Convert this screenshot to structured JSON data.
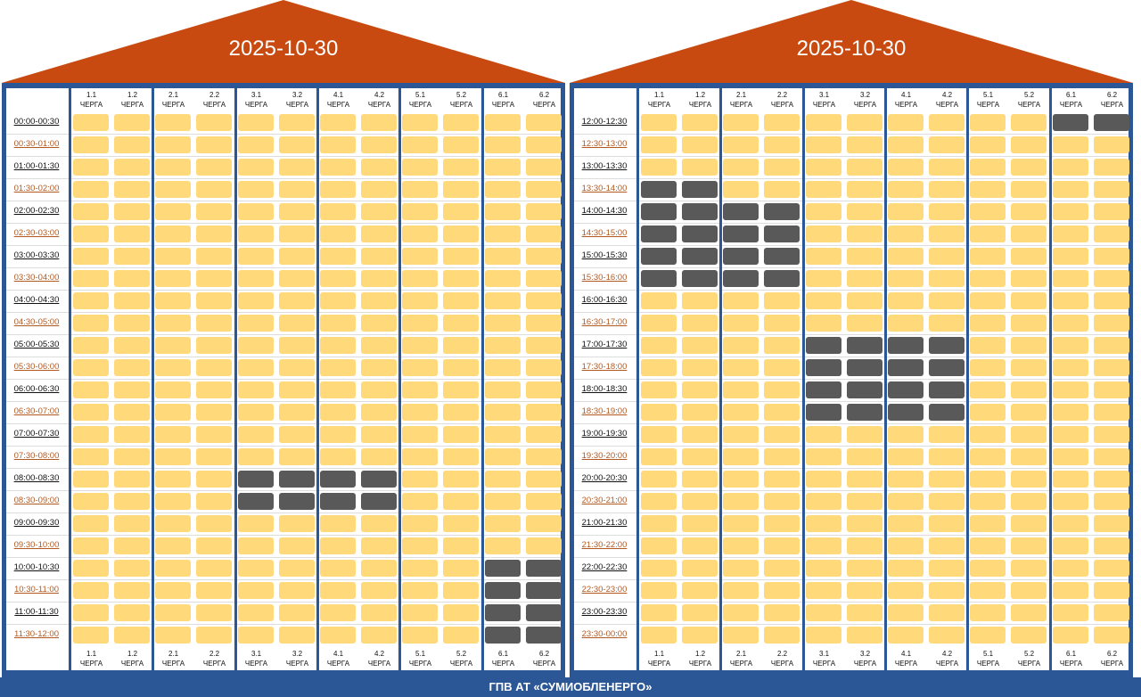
{
  "colors": {
    "roof": "#c84a10",
    "frame": "#2b5797",
    "power_on": "#ffd97a",
    "power_off": "#595959",
    "time_label_alt": "#b35a21"
  },
  "queues": [
    {
      "num": "1.1",
      "word": "ЧЕРГА"
    },
    {
      "num": "1.2",
      "word": "ЧЕРГА"
    },
    {
      "num": "2.1",
      "word": "ЧЕРГА"
    },
    {
      "num": "2.2",
      "word": "ЧЕРГА"
    },
    {
      "num": "3.1",
      "word": "ЧЕРГА"
    },
    {
      "num": "3.2",
      "word": "ЧЕРГА"
    },
    {
      "num": "4.1",
      "word": "ЧЕРГА"
    },
    {
      "num": "4.2",
      "word": "ЧЕРГА"
    },
    {
      "num": "5.1",
      "word": "ЧЕРГА"
    },
    {
      "num": "5.2",
      "word": "ЧЕРГА"
    },
    {
      "num": "6.1",
      "word": "ЧЕРГА"
    },
    {
      "num": "6.2",
      "word": "ЧЕРГА"
    }
  ],
  "panels": [
    {
      "date": "2025-10-30",
      "times": [
        "00:00-00:30",
        "00:30-01:00",
        "01:00-01:30",
        "01:30-02:00",
        "02:00-02:30",
        "02:30-03:00",
        "03:00-03:30",
        "03:30-04:00",
        "04:00-04:30",
        "04:30-05:00",
        "05:00-05:30",
        "05:30-06:00",
        "06:00-06:30",
        "06:30-07:00",
        "07:00-07:30",
        "07:30-08:00",
        "08:00-08:30",
        "08:30-09:00",
        "09:00-09:30",
        "09:30-10:00",
        "10:00-10:30",
        "10:30-11:00",
        "11:00-11:30",
        "11:30-12:00"
      ],
      "outages": [
        [
          0,
          0,
          0,
          0,
          0,
          0,
          0,
          0,
          0,
          0,
          0,
          0
        ],
        [
          0,
          0,
          0,
          0,
          0,
          0,
          0,
          0,
          0,
          0,
          0,
          0
        ],
        [
          0,
          0,
          0,
          0,
          0,
          0,
          0,
          0,
          0,
          0,
          0,
          0
        ],
        [
          0,
          0,
          0,
          0,
          0,
          0,
          0,
          0,
          0,
          0,
          0,
          0
        ],
        [
          0,
          0,
          0,
          0,
          0,
          0,
          0,
          0,
          0,
          0,
          0,
          0
        ],
        [
          0,
          0,
          0,
          0,
          0,
          0,
          0,
          0,
          0,
          0,
          0,
          0
        ],
        [
          0,
          0,
          0,
          0,
          0,
          0,
          0,
          0,
          0,
          0,
          0,
          0
        ],
        [
          0,
          0,
          0,
          0,
          0,
          0,
          0,
          0,
          0,
          0,
          0,
          0
        ],
        [
          0,
          0,
          0,
          0,
          0,
          0,
          0,
          0,
          0,
          0,
          0,
          0
        ],
        [
          0,
          0,
          0,
          0,
          0,
          0,
          0,
          0,
          0,
          0,
          0,
          0
        ],
        [
          0,
          0,
          0,
          0,
          0,
          0,
          0,
          0,
          0,
          0,
          0,
          0
        ],
        [
          0,
          0,
          0,
          0,
          0,
          0,
          0,
          0,
          0,
          0,
          0,
          0
        ],
        [
          0,
          0,
          0,
          0,
          0,
          0,
          0,
          0,
          0,
          0,
          0,
          0
        ],
        [
          0,
          0,
          0,
          0,
          0,
          0,
          0,
          0,
          0,
          0,
          0,
          0
        ],
        [
          0,
          0,
          0,
          0,
          0,
          0,
          0,
          0,
          0,
          0,
          0,
          0
        ],
        [
          0,
          0,
          0,
          0,
          0,
          0,
          0,
          0,
          0,
          0,
          0,
          0
        ],
        [
          0,
          0,
          0,
          0,
          1,
          1,
          1,
          1,
          0,
          0,
          0,
          0
        ],
        [
          0,
          0,
          0,
          0,
          1,
          1,
          1,
          1,
          0,
          0,
          0,
          0
        ],
        [
          0,
          0,
          0,
          0,
          0,
          0,
          0,
          0,
          0,
          0,
          0,
          0
        ],
        [
          0,
          0,
          0,
          0,
          0,
          0,
          0,
          0,
          0,
          0,
          0,
          0
        ],
        [
          0,
          0,
          0,
          0,
          0,
          0,
          0,
          0,
          0,
          0,
          1,
          1
        ],
        [
          0,
          0,
          0,
          0,
          0,
          0,
          0,
          0,
          0,
          0,
          1,
          1
        ],
        [
          0,
          0,
          0,
          0,
          0,
          0,
          0,
          0,
          0,
          0,
          1,
          1
        ],
        [
          0,
          0,
          0,
          0,
          0,
          0,
          0,
          0,
          0,
          0,
          1,
          1
        ]
      ]
    },
    {
      "date": "2025-10-30",
      "times": [
        "12:00-12:30",
        "12:30-13:00",
        "13:00-13:30",
        "13:30-14:00",
        "14:00-14:30",
        "14:30-15:00",
        "15:00-15:30",
        "15:30-16:00",
        "16:00-16:30",
        "16:30-17:00",
        "17:00-17:30",
        "17:30-18:00",
        "18:00-18:30",
        "18:30-19:00",
        "19:00-19:30",
        "19:30-20:00",
        "20:00-20:30",
        "20:30-21:00",
        "21:00-21:30",
        "21:30-22:00",
        "22:00-22:30",
        "22:30-23:00",
        "23:00-23:30",
        "23:30-00:00"
      ],
      "outages": [
        [
          0,
          0,
          0,
          0,
          0,
          0,
          0,
          0,
          0,
          0,
          1,
          1
        ],
        [
          0,
          0,
          0,
          0,
          0,
          0,
          0,
          0,
          0,
          0,
          0,
          0
        ],
        [
          0,
          0,
          0,
          0,
          0,
          0,
          0,
          0,
          0,
          0,
          0,
          0
        ],
        [
          1,
          1,
          0,
          0,
          0,
          0,
          0,
          0,
          0,
          0,
          0,
          0
        ],
        [
          1,
          1,
          1,
          1,
          0,
          0,
          0,
          0,
          0,
          0,
          0,
          0
        ],
        [
          1,
          1,
          1,
          1,
          0,
          0,
          0,
          0,
          0,
          0,
          0,
          0
        ],
        [
          1,
          1,
          1,
          1,
          0,
          0,
          0,
          0,
          0,
          0,
          0,
          0
        ],
        [
          1,
          1,
          1,
          1,
          0,
          0,
          0,
          0,
          0,
          0,
          0,
          0
        ],
        [
          0,
          0,
          0,
          0,
          0,
          0,
          0,
          0,
          0,
          0,
          0,
          0
        ],
        [
          0,
          0,
          0,
          0,
          0,
          0,
          0,
          0,
          0,
          0,
          0,
          0
        ],
        [
          0,
          0,
          0,
          0,
          1,
          1,
          1,
          1,
          0,
          0,
          0,
          0
        ],
        [
          0,
          0,
          0,
          0,
          1,
          1,
          1,
          1,
          0,
          0,
          0,
          0
        ],
        [
          0,
          0,
          0,
          0,
          1,
          1,
          1,
          1,
          0,
          0,
          0,
          0
        ],
        [
          0,
          0,
          0,
          0,
          1,
          1,
          1,
          1,
          0,
          0,
          0,
          0
        ],
        [
          0,
          0,
          0,
          0,
          0,
          0,
          0,
          0,
          0,
          0,
          0,
          0
        ],
        [
          0,
          0,
          0,
          0,
          0,
          0,
          0,
          0,
          0,
          0,
          0,
          0
        ],
        [
          0,
          0,
          0,
          0,
          0,
          0,
          0,
          0,
          0,
          0,
          0,
          0
        ],
        [
          0,
          0,
          0,
          0,
          0,
          0,
          0,
          0,
          0,
          0,
          0,
          0
        ],
        [
          0,
          0,
          0,
          0,
          0,
          0,
          0,
          0,
          0,
          0,
          0,
          0
        ],
        [
          0,
          0,
          0,
          0,
          0,
          0,
          0,
          0,
          0,
          0,
          0,
          0
        ],
        [
          0,
          0,
          0,
          0,
          0,
          0,
          0,
          0,
          0,
          0,
          0,
          0
        ],
        [
          0,
          0,
          0,
          0,
          0,
          0,
          0,
          0,
          0,
          0,
          0,
          0
        ],
        [
          0,
          0,
          0,
          0,
          0,
          0,
          0,
          0,
          0,
          0,
          0,
          0
        ],
        [
          0,
          0,
          0,
          0,
          0,
          0,
          0,
          0,
          0,
          0,
          0,
          0
        ]
      ]
    }
  ],
  "footer": "ГПВ АТ «СУМИОБЛЕНЕРГО»"
}
